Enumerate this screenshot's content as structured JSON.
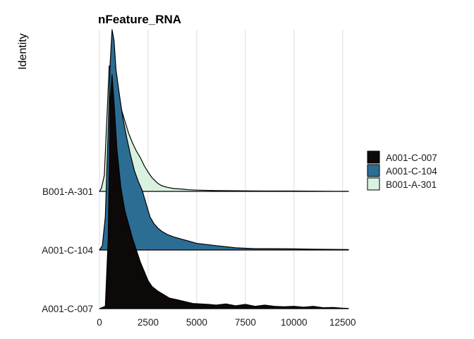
{
  "chart_data": {
    "type": "ridgeline",
    "title": "nFeature_RNA",
    "xlabel": "",
    "ylabel": "Identity",
    "xlim": [
      0,
      12800
    ],
    "x_ticks": [
      0,
      2500,
      5000,
      7500,
      10000,
      12500
    ],
    "x_tick_labels": [
      "0",
      "2500",
      "5000",
      "7500",
      "10000",
      "12500"
    ],
    "grid": "vertical",
    "legend_position": "right",
    "categories": [
      "A001-C-007",
      "A001-C-104",
      "B001-A-301"
    ],
    "series": [
      {
        "name": "A001-C-007",
        "color": "#0d0909",
        "points": [
          [
            0,
            0
          ],
          [
            300,
            0.01
          ],
          [
            450,
            0.3
          ],
          [
            550,
            0.9
          ],
          [
            650,
            1.0
          ],
          [
            750,
            0.88
          ],
          [
            900,
            0.68
          ],
          [
            1100,
            0.52
          ],
          [
            1300,
            0.42
          ],
          [
            1500,
            0.36
          ],
          [
            1700,
            0.3
          ],
          [
            1900,
            0.25
          ],
          [
            2100,
            0.2
          ],
          [
            2300,
            0.16
          ],
          [
            2500,
            0.12
          ],
          [
            2700,
            0.095
          ],
          [
            3000,
            0.075
          ],
          [
            3300,
            0.06
          ],
          [
            3600,
            0.045
          ],
          [
            4000,
            0.038
          ],
          [
            4400,
            0.03
          ],
          [
            4800,
            0.022
          ],
          [
            5200,
            0.02
          ],
          [
            5600,
            0.018
          ],
          [
            6000,
            0.015
          ],
          [
            6500,
            0.02
          ],
          [
            7000,
            0.012
          ],
          [
            7500,
            0.018
          ],
          [
            8000,
            0.01
          ],
          [
            8500,
            0.015
          ],
          [
            9000,
            0.01
          ],
          [
            9500,
            0.008
          ],
          [
            10000,
            0.01
          ],
          [
            10500,
            0.006
          ],
          [
            11000,
            0.01
          ],
          [
            11500,
            0.004
          ],
          [
            12000,
            0.005
          ],
          [
            12500,
            0.002
          ],
          [
            12800,
            0.001
          ]
        ]
      },
      {
        "name": "A001-C-104",
        "color": "#2c6d94",
        "points": [
          [
            0,
            0
          ],
          [
            150,
            0.02
          ],
          [
            300,
            0.15
          ],
          [
            450,
            0.55
          ],
          [
            550,
            0.85
          ],
          [
            650,
            1.0
          ],
          [
            750,
            0.95
          ],
          [
            850,
            0.82
          ],
          [
            1000,
            0.72
          ],
          [
            1200,
            0.6
          ],
          [
            1400,
            0.51
          ],
          [
            1600,
            0.43
          ],
          [
            1800,
            0.36
          ],
          [
            2000,
            0.31
          ],
          [
            2200,
            0.27
          ],
          [
            2400,
            0.21
          ],
          [
            2600,
            0.15
          ],
          [
            2800,
            0.12
          ],
          [
            3000,
            0.1
          ],
          [
            3200,
            0.085
          ],
          [
            3500,
            0.07
          ],
          [
            3800,
            0.06
          ],
          [
            4200,
            0.05
          ],
          [
            4600,
            0.04
          ],
          [
            5000,
            0.03
          ],
          [
            5500,
            0.025
          ],
          [
            6000,
            0.02
          ],
          [
            6500,
            0.015
          ],
          [
            7000,
            0.01
          ],
          [
            7500,
            0.008
          ],
          [
            8000,
            0.006
          ],
          [
            9000,
            0.006
          ],
          [
            10000,
            0.005
          ],
          [
            11000,
            0.004
          ],
          [
            12000,
            0.003
          ],
          [
            12800,
            0.002
          ]
        ]
      },
      {
        "name": "B001-A-301",
        "color": "#d9f2df",
        "points": [
          [
            0,
            0
          ],
          [
            100,
            0.02
          ],
          [
            250,
            0.1
          ],
          [
            400,
            0.5
          ],
          [
            500,
            0.78
          ],
          [
            600,
            0.72
          ],
          [
            750,
            0.66
          ],
          [
            900,
            0.6
          ],
          [
            1100,
            0.52
          ],
          [
            1300,
            0.44
          ],
          [
            1500,
            0.36
          ],
          [
            1700,
            0.3
          ],
          [
            1900,
            0.25
          ],
          [
            2100,
            0.21
          ],
          [
            2300,
            0.16
          ],
          [
            2500,
            0.12
          ],
          [
            2700,
            0.085
          ],
          [
            3000,
            0.05
          ],
          [
            3200,
            0.035
          ],
          [
            3500,
            0.025
          ],
          [
            3800,
            0.018
          ],
          [
            4200,
            0.015
          ],
          [
            4600,
            0.01
          ],
          [
            5000,
            0.008
          ],
          [
            6000,
            0.005
          ],
          [
            7000,
            0.004
          ],
          [
            8000,
            0.003
          ],
          [
            9000,
            0.002
          ],
          [
            10000,
            0.002
          ],
          [
            12000,
            0.001
          ],
          [
            12800,
            0.001
          ]
        ]
      }
    ]
  }
}
